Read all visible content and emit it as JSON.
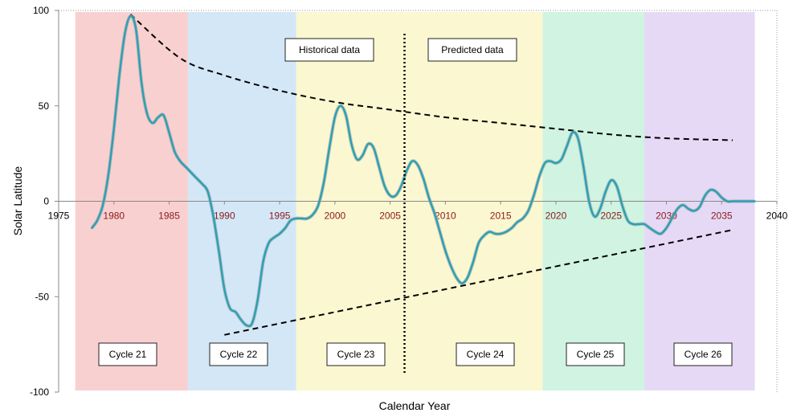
{
  "chart_data": {
    "type": "line",
    "xlabel": "Calendar Year",
    "ylabel": "Solar Latitude",
    "xlim": [
      1975,
      2040
    ],
    "ylim": [
      -100,
      100
    ],
    "x_ticks": [
      "1975",
      "1980",
      "1985",
      "1990",
      "1995",
      "2000",
      "2005",
      "2010",
      "2015",
      "2020",
      "2025",
      "2030",
      "2035",
      "2040"
    ],
    "y_ticks": [
      "100",
      "50",
      "0",
      "-50",
      "-100"
    ],
    "grid": false,
    "colors": {
      "line": "#2e9fb2",
      "tick_inside": "#8b1a1a",
      "envelope": "#000000"
    },
    "cycles": [
      {
        "label": "Cycle 21",
        "start": 1976.5,
        "end": 1986.7,
        "color": "#f9d0d0"
      },
      {
        "label": "Cycle 22",
        "start": 1986.7,
        "end": 1996.5,
        "color": "#d3e7f7"
      },
      {
        "label": "Cycle 23",
        "start": 1996.5,
        "end": 2007.0,
        "color": "#fbf7d0"
      },
      {
        "label": "Cycle 24",
        "start": 2007.0,
        "end": 2018.8,
        "color": "#fbf7d0"
      },
      {
        "label": "Cycle 25",
        "start": 2018.8,
        "end": 2028.0,
        "color": "#d0f3e2"
      },
      {
        "label": "Cycle 26",
        "start": 2028.0,
        "end": 2038.0,
        "color": "#e6d9f5"
      }
    ],
    "annotations": {
      "historical": "Historical data",
      "predicted": "Predicted data",
      "divider_year": 2006.3
    },
    "series": [
      {
        "x": [
          1978.0,
          1978.5,
          1979.0,
          1979.5,
          1980.0,
          1980.5,
          1981.0,
          1981.5,
          1982.0,
          1982.5,
          1983.0,
          1983.5,
          1984.0,
          1984.5,
          1985.0,
          1985.5,
          1986.0,
          1986.5,
          1987.0,
          1987.5,
          1988.0,
          1988.5,
          1989.0,
          1989.5,
          1990.0,
          1990.5,
          1991.0,
          1991.5,
          1992.0,
          1992.5,
          1993.0,
          1993.5,
          1994.0,
          1994.5,
          1995.0,
          1995.5,
          1996.0,
          1996.5,
          1997.0,
          1997.5,
          1998.0,
          1998.5,
          1999.0,
          1999.5,
          2000.0,
          2000.5,
          2001.0,
          2001.5,
          2002.0,
          2002.5,
          2003.0,
          2003.5,
          2004.0,
          2004.5,
          2005.0,
          2005.5,
          2006.0,
          2006.5,
          2007.0,
          2007.5,
          2008.0,
          2008.5,
          2009.0,
          2009.5,
          2010.0,
          2010.5,
          2011.0,
          2011.5,
          2012.0,
          2012.5,
          2013.0,
          2013.5,
          2014.0,
          2014.5,
          2015.0,
          2015.5,
          2016.0,
          2016.5,
          2017.0,
          2017.5,
          2018.0,
          2018.5,
          2019.0,
          2019.5,
          2020.0,
          2020.5,
          2021.0,
          2021.5,
          2022.0,
          2022.5,
          2023.0,
          2023.5,
          2024.0,
          2024.5,
          2025.0,
          2025.5,
          2026.0,
          2026.5,
          2027.0,
          2027.5,
          2028.0,
          2028.5,
          2029.0,
          2029.5,
          2030.0,
          2030.5,
          2031.0,
          2031.5,
          2032.0,
          2032.5,
          2033.0,
          2033.5,
          2034.0,
          2034.5,
          2035.0,
          2035.5,
          2036.0,
          2036.5,
          2037.0,
          2037.5,
          2038.0
        ],
        "values": [
          -14,
          -10,
          -2,
          14,
          38,
          66,
          88,
          97,
          90,
          62,
          46,
          41,
          44,
          45,
          36,
          26,
          21,
          18,
          15,
          12,
          9,
          5,
          -8,
          -26,
          -46,
          -56,
          -58,
          -62,
          -65,
          -64,
          -52,
          -32,
          -22,
          -19,
          -17,
          -14,
          -10,
          -9,
          -9,
          -9,
          -7,
          -2,
          10,
          28,
          44,
          50,
          45,
          30,
          22,
          24,
          30,
          28,
          18,
          8,
          3,
          3,
          8,
          16,
          21,
          19,
          12,
          2,
          -6,
          -16,
          -26,
          -34,
          -40,
          -43,
          -40,
          -32,
          -22,
          -18,
          -16,
          -17,
          -17,
          -16,
          -14,
          -11,
          -9,
          -5,
          3,
          13,
          20,
          21,
          20,
          22,
          29,
          36,
          33,
          18,
          0,
          -8,
          -4,
          5,
          11,
          8,
          -2,
          -10,
          -12,
          -12,
          -12,
          -14,
          -16,
          -17,
          -14,
          -9,
          -4,
          -2,
          -4,
          -5,
          -3,
          3,
          6,
          5,
          2,
          0,
          0,
          0,
          0,
          0,
          0
        ],
        "name": ""
      }
    ],
    "envelope_upper": {
      "x": [
        1981.5,
        1986,
        1990,
        1995,
        2000,
        2005,
        2010,
        2015,
        2020,
        2025,
        2030,
        2036
      ],
      "values": [
        98,
        75,
        66,
        58,
        52,
        48,
        44,
        41,
        38,
        35,
        33,
        32
      ]
    },
    "envelope_lower": {
      "x": [
        1990,
        2036
      ],
      "values": [
        -70,
        -15
      ]
    }
  }
}
